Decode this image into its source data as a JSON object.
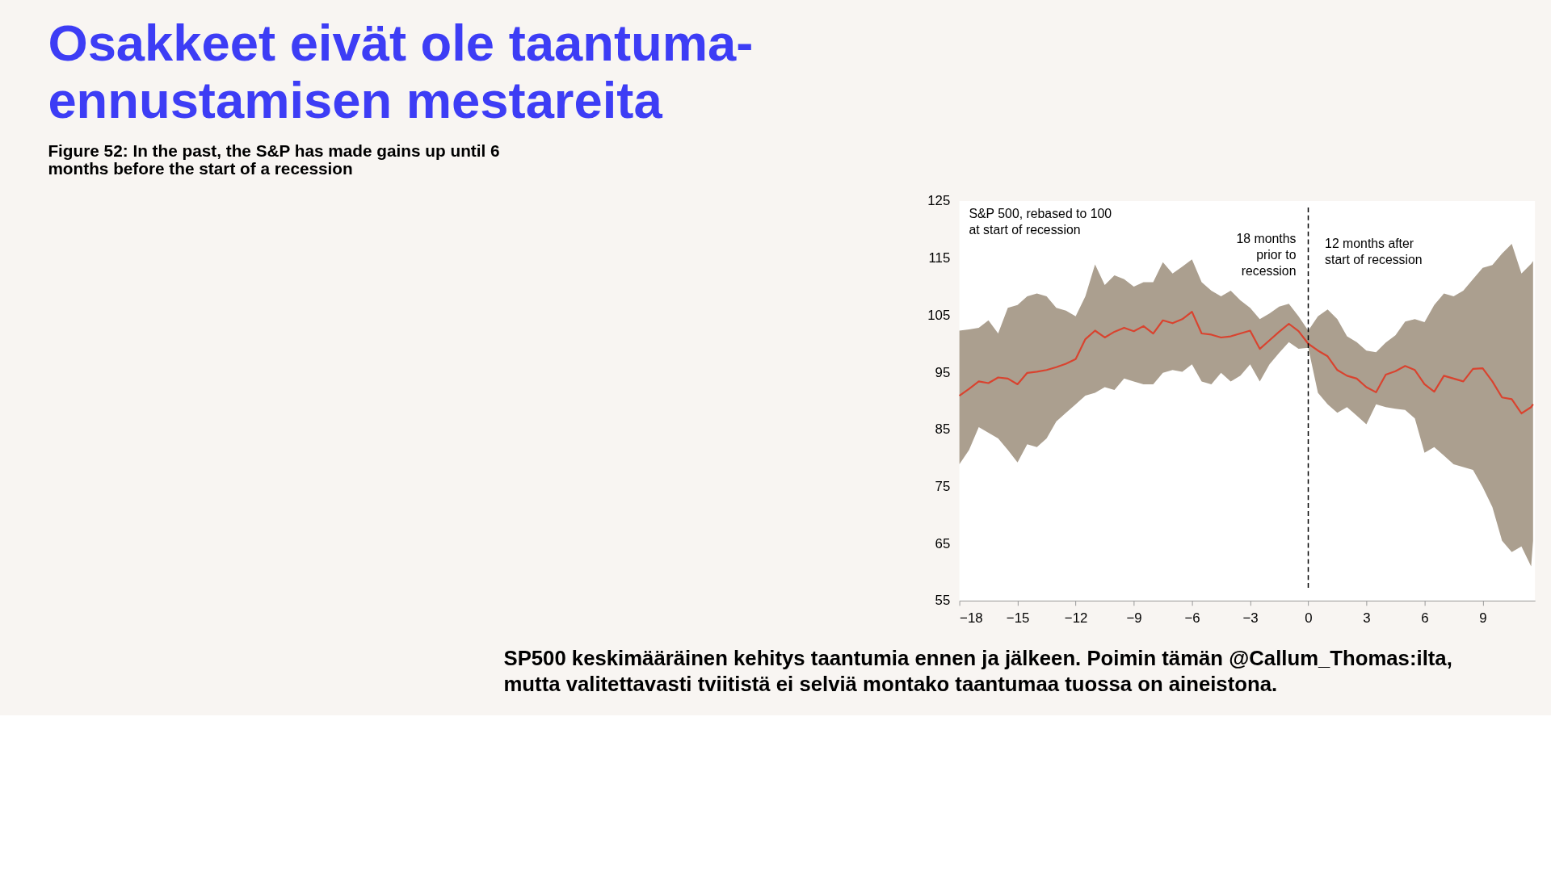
{
  "chart_data": {
    "type": "line",
    "title": "Osakkeet eivät ole taantuma-\nennustamisen mestareita",
    "subtitle": "Figure 52: In the past, the S&P has made gains up until 6\nmonths before the start of a recession",
    "annotations": [
      "S&P 500, rebased to 100\nat start of recession",
      "18 months\nprior to\nrecession",
      "12 months after\nstart of recession",
      "SP500 keskimääräinen kehitys taantumia ennen ja jälkeen. Poimin tämän @Callum_Thomas:ilta,\nmutta valitettavasti tviitistä ei selviä montako taantumaa tuossa on aineistona."
    ],
    "x": [
      -18,
      -17.5,
      -17,
      -16.5,
      -16,
      -15.5,
      -15,
      -14.5,
      -14,
      -13.5,
      -13,
      -12.5,
      -12,
      -11.5,
      -11,
      -10.5,
      -10,
      -9.5,
      -9,
      -8.5,
      -8,
      -7.5,
      -7,
      -6.5,
      -6,
      -5.5,
      -5,
      -4.5,
      -4,
      -3.5,
      -3,
      -2.5,
      -2,
      -1.5,
      -1,
      -0.5,
      0,
      0.5,
      1,
      1.5,
      2,
      2.5,
      3,
      3.5,
      4,
      4.5,
      5,
      5.5,
      6,
      6.5,
      7,
      7.5,
      8,
      8.5,
      9,
      9.5,
      10,
      10.5,
      11,
      11.5,
      11.6
    ],
    "series": [
      {
        "color": "#d9432f",
        "values": [
          90.9,
          92.1,
          93.4,
          93.1,
          94.1,
          93.9,
          92.9,
          94.9,
          95.1,
          95.4,
          95.9,
          96.5,
          97.3,
          100.8,
          102.3,
          101.1,
          102.1,
          102.8,
          102.2,
          103.1,
          101.8,
          104.1,
          103.6,
          104.3,
          105.6,
          101.8,
          101.6,
          101.1,
          101.3,
          101.8,
          102.3,
          99.1,
          100.6,
          102.1,
          103.5,
          102.2,
          100,
          98.8,
          97.8,
          95.4,
          94.4,
          93.9,
          92.4,
          91.5,
          94.6,
          95.2,
          96.1,
          95.4,
          92.9,
          91.6,
          94.4,
          93.9,
          93.4,
          95.6,
          95.7,
          93.4,
          90.6,
          90.3,
          87.8,
          88.9,
          89.4
        ],
        "lower": [
          78.9,
          81.4,
          85.4,
          84.4,
          83.4,
          81.4,
          79.2,
          82.4,
          81.9,
          83.4,
          86.4,
          87.9,
          89.4,
          90.9,
          91.4,
          92.4,
          91.9,
          93.9,
          93.4,
          92.9,
          92.9,
          94.9,
          95.4,
          95.1,
          96.4,
          93.4,
          92.9,
          94.9,
          93.4,
          94.4,
          96.4,
          93.4,
          96.4,
          98.4,
          100.3,
          99.1,
          99.3,
          91.4,
          89.4,
          87.9,
          88.9,
          87.4,
          85.9,
          89.4,
          88.9,
          88.6,
          88.4,
          86.9,
          80.9,
          81.9,
          80.4,
          78.9,
          78.4,
          77.9,
          74.9,
          71.4,
          65.5,
          63.5,
          64.5,
          61.0,
          65.5
        ],
        "upper": [
          102.3,
          102.5,
          102.8,
          104.1,
          101.8,
          106.3,
          106.8,
          108.3,
          108.8,
          108.3,
          106.3,
          105.8,
          104.8,
          108.3,
          113.9,
          110.3,
          112.0,
          111.3,
          110.0,
          110.8,
          110.8,
          114.3,
          112.3,
          113.5,
          114.8,
          110.8,
          109.3,
          108.3,
          109.3,
          107.6,
          106.3,
          104.3,
          105.3,
          106.5,
          107.0,
          104.8,
          102.3,
          104.8,
          106.0,
          104.3,
          101.3,
          100.3,
          98.8,
          98.5,
          100.2,
          101.5,
          103.9,
          104.3,
          103.8,
          106.8,
          108.8,
          108.3,
          109.3,
          111.3,
          113.3,
          113.8,
          115.8,
          117.5,
          112.3,
          114.0,
          114.5
        ]
      }
    ],
    "xlim": [
      -18,
      11.7
    ],
    "ylim": [
      55,
      125
    ],
    "xticks": [
      -18,
      -15,
      -12,
      -9,
      -6,
      -3,
      0,
      3,
      6,
      9
    ],
    "yticks": [
      55,
      65,
      75,
      85,
      95,
      105,
      115,
      125
    ],
    "ref_lines": [
      {
        "axis": "x",
        "value": 0,
        "color": "#000000",
        "line_style": "dashed"
      }
    ],
    "grid": false
  }
}
